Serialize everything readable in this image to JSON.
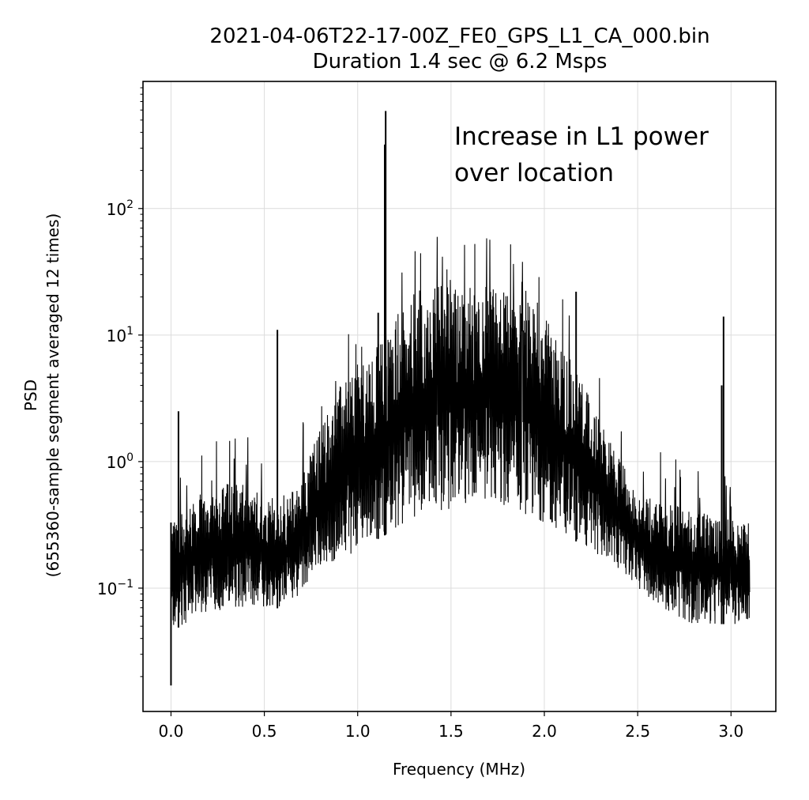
{
  "chart_data": {
    "type": "line",
    "title": "2021-04-06T22-17-00Z_FE0_GPS_L1_CA_000.bin",
    "subtitle": "Duration 1.4 sec @ 6.2 Msps",
    "xlabel": "Frequency (MHz)",
    "ylabel_line1": "PSD",
    "ylabel_line2": "(655360-sample segment averaged 12 times)",
    "xlim": [
      -0.15,
      3.24
    ],
    "ylim": [
      0.0106,
      1010
    ],
    "yscale": "log",
    "grid": true,
    "xticks": [
      "0.0",
      "0.5",
      "1.0",
      "1.5",
      "2.0",
      "2.5",
      "3.0"
    ],
    "xtick_values": [
      0,
      0.5,
      1,
      1.5,
      2,
      2.5,
      3
    ],
    "yticks": [
      {
        "base": "10",
        "exp": "2",
        "value": 100
      },
      {
        "base": "10",
        "exp": "1",
        "value": 10
      },
      {
        "base": "10",
        "exp": "0",
        "value": 1
      },
      {
        "base": "10",
        "exp": "−1",
        "value": 0.1
      }
    ],
    "annotation": {
      "line1": "Increase in L1 power",
      "line2": "over location"
    },
    "line_color": "#000000",
    "envelope": {
      "freq": [
        0.0,
        0.1,
        0.2,
        0.3,
        0.4,
        0.5,
        0.6,
        0.7,
        0.8,
        0.9,
        1.0,
        1.1,
        1.2,
        1.3,
        1.4,
        1.5,
        1.6,
        1.7,
        1.8,
        1.9,
        2.0,
        2.1,
        2.2,
        2.3,
        2.4,
        2.5,
        2.6,
        2.7,
        2.8,
        2.9,
        3.0,
        3.1
      ],
      "upper": [
        0.33,
        0.5,
        0.6,
        0.69,
        0.65,
        0.55,
        0.45,
        0.8,
        1.9,
        3.9,
        6,
        8,
        14,
        22,
        24,
        25,
        25,
        25,
        22,
        19,
        14,
        8,
        4.5,
        2.2,
        1.05,
        0.6,
        0.5,
        0.45,
        0.42,
        0.39,
        0.36,
        0.33
      ],
      "lower": [
        0.045,
        0.055,
        0.062,
        0.069,
        0.07,
        0.07,
        0.069,
        0.09,
        0.14,
        0.17,
        0.19,
        0.24,
        0.29,
        0.35,
        0.39,
        0.42,
        0.44,
        0.45,
        0.42,
        0.38,
        0.33,
        0.27,
        0.22,
        0.17,
        0.14,
        0.1,
        0.07,
        0.06,
        0.052,
        0.052,
        0.052,
        0.052
      ]
    },
    "spikes": [
      {
        "freq": 1.15,
        "value": 590
      },
      {
        "freq": 1.145,
        "value": 320
      },
      {
        "freq": 0.57,
        "value": 11
      },
      {
        "freq": 2.17,
        "value": 22
      },
      {
        "freq": 2.96,
        "value": 14
      },
      {
        "freq": 2.95,
        "value": 4
      },
      {
        "freq": 1.11,
        "value": 15
      },
      {
        "freq": 0.0,
        "value": 0.017
      },
      {
        "freq": 0.04,
        "value": 2.5
      }
    ]
  }
}
